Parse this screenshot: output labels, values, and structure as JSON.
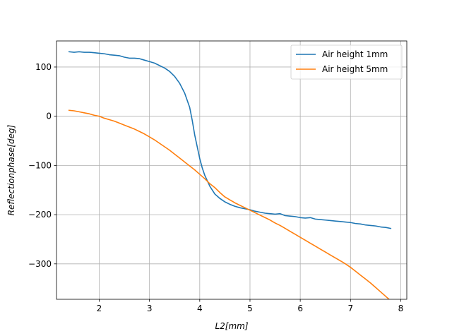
{
  "chart_data": {
    "type": "line",
    "title": "",
    "xlabel": "L2[mm]",
    "ylabel": "Reflectionphase[deg]",
    "xlim": [
      1.15,
      8.12
    ],
    "ylim": [
      -372,
      153
    ],
    "xticks": [
      2,
      3,
      4,
      5,
      6,
      7,
      8
    ],
    "yticks": [
      100,
      0,
      -100,
      -200,
      -300
    ],
    "ytick_labels": [
      "100",
      "0",
      "−100",
      "−200",
      "−300"
    ],
    "grid": true,
    "legend_position": "top-right",
    "series": [
      {
        "name": "Air height 1mm",
        "color": "#1f77b4",
        "x": [
          1.4,
          1.5,
          1.6,
          1.7,
          1.8,
          1.9,
          2.0,
          2.1,
          2.2,
          2.3,
          2.4,
          2.5,
          2.6,
          2.7,
          2.8,
          2.9,
          3.0,
          3.1,
          3.2,
          3.3,
          3.4,
          3.5,
          3.6,
          3.7,
          3.8,
          3.85,
          3.9,
          3.95,
          4.0,
          4.05,
          4.1,
          4.2,
          4.3,
          4.4,
          4.5,
          4.6,
          4.7,
          4.8,
          4.9,
          5.0,
          5.1,
          5.2,
          5.3,
          5.4,
          5.5,
          5.6,
          5.7,
          5.8,
          5.9,
          6.0,
          6.1,
          6.2,
          6.3,
          6.4,
          6.5,
          6.6,
          6.7,
          6.8,
          6.9,
          7.0,
          7.1,
          7.2,
          7.3,
          7.4,
          7.5,
          7.6,
          7.7,
          7.8
        ],
        "y": [
          131,
          130,
          131,
          130,
          130,
          129,
          128,
          127,
          125,
          124,
          123,
          120,
          118,
          118,
          117,
          114,
          111,
          108,
          103,
          98,
          91,
          81,
          67,
          47,
          18,
          -8,
          -38,
          -62,
          -86,
          -105,
          -120,
          -142,
          -158,
          -167,
          -174,
          -179,
          -183,
          -186,
          -188,
          -190,
          -193,
          -195,
          -197,
          -198,
          -199,
          -198,
          -202,
          -203,
          -204,
          -206,
          -207,
          -206,
          -209,
          -210,
          -211,
          -212,
          -213,
          -214,
          -215,
          -216,
          -218,
          -219,
          -221,
          -222,
          -223,
          -225,
          -226,
          -228
        ]
      },
      {
        "name": "Air height 5mm",
        "color": "#ff7f0e",
        "x": [
          1.4,
          1.5,
          1.6,
          1.7,
          1.8,
          1.9,
          2.0,
          2.1,
          2.2,
          2.3,
          2.4,
          2.5,
          2.6,
          2.7,
          2.8,
          2.9,
          3.0,
          3.1,
          3.2,
          3.3,
          3.4,
          3.5,
          3.6,
          3.7,
          3.8,
          3.9,
          4.0,
          4.1,
          4.2,
          4.3,
          4.4,
          4.5,
          4.6,
          4.7,
          4.8,
          4.9,
          5.0,
          5.1,
          5.2,
          5.3,
          5.4,
          5.5,
          5.6,
          5.7,
          5.8,
          5.9,
          6.0,
          6.1,
          6.2,
          6.3,
          6.4,
          6.5,
          6.6,
          6.7,
          6.8,
          6.9,
          7.0,
          7.1,
          7.2,
          7.3,
          7.4,
          7.5,
          7.6,
          7.7,
          7.8
        ],
        "y": [
          12,
          11,
          9,
          7,
          5,
          2,
          0,
          -4,
          -7,
          -10,
          -14,
          -18,
          -22,
          -26,
          -31,
          -36,
          -42,
          -48,
          -55,
          -62,
          -69,
          -77,
          -85,
          -93,
          -101,
          -109,
          -118,
          -127,
          -137,
          -145,
          -155,
          -164,
          -170,
          -176,
          -181,
          -186,
          -191,
          -196,
          -201,
          -206,
          -211,
          -217,
          -222,
          -228,
          -234,
          -240,
          -246,
          -252,
          -258,
          -264,
          -270,
          -276,
          -282,
          -288,
          -294,
          -300,
          -307,
          -315,
          -323,
          -331,
          -339,
          -348,
          -357,
          -366,
          -375
        ]
      }
    ]
  }
}
